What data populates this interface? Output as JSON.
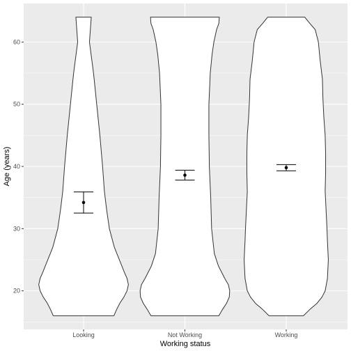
{
  "chart_data": {
    "type": "violin",
    "xlabel": "Working status",
    "ylabel": "Age (years)",
    "categories": [
      "Looking",
      "Not Working",
      "Working"
    ],
    "ylim": [
      13.8,
      66.2
    ],
    "y_ticks": [
      20,
      30,
      40,
      50,
      60
    ],
    "y_tick_labels": [
      "20",
      "30",
      "40",
      "50",
      "60"
    ],
    "grid": true,
    "panel_background": "#ebebeb",
    "grid_color": "#ffffff",
    "violin_fill": "#ffffff",
    "violin_outline": "#333333",
    "violins": [
      {
        "category": "Looking",
        "y_min": 16,
        "y_max": 64,
        "profile": [
          [
            16,
            0.67
          ],
          [
            17,
            0.73
          ],
          [
            18,
            0.8
          ],
          [
            19,
            0.89
          ],
          [
            20,
            0.96
          ],
          [
            21,
            0.99
          ],
          [
            22,
            0.96
          ],
          [
            23,
            0.9
          ],
          [
            25,
            0.79
          ],
          [
            27,
            0.68
          ],
          [
            30,
            0.57
          ],
          [
            33,
            0.51
          ],
          [
            36,
            0.46
          ],
          [
            40,
            0.42
          ],
          [
            45,
            0.36
          ],
          [
            50,
            0.29
          ],
          [
            55,
            0.22
          ],
          [
            60,
            0.13
          ],
          [
            64,
            0.17
          ]
        ]
      },
      {
        "category": "Not Working",
        "y_min": 16,
        "y_max": 64,
        "profile": [
          [
            16,
            0.75
          ],
          [
            17,
            0.83
          ],
          [
            18,
            0.92
          ],
          [
            19,
            0.98
          ],
          [
            20,
            0.99
          ],
          [
            21,
            0.96
          ],
          [
            22,
            0.88
          ],
          [
            24,
            0.74
          ],
          [
            26,
            0.65
          ],
          [
            30,
            0.59
          ],
          [
            35,
            0.57
          ],
          [
            40,
            0.54
          ],
          [
            45,
            0.53
          ],
          [
            50,
            0.53
          ],
          [
            55,
            0.56
          ],
          [
            58,
            0.6
          ],
          [
            60,
            0.64
          ],
          [
            62,
            0.7
          ],
          [
            63,
            0.75
          ],
          [
            64,
            0.76
          ]
        ]
      },
      {
        "category": "Working",
        "y_min": 16,
        "y_max": 64,
        "profile": [
          [
            16,
            0.38
          ],
          [
            17,
            0.52
          ],
          [
            18,
            0.68
          ],
          [
            19,
            0.79
          ],
          [
            20,
            0.86
          ],
          [
            22,
            0.91
          ],
          [
            25,
            0.93
          ],
          [
            28,
            0.91
          ],
          [
            30,
            0.9
          ],
          [
            33,
            0.88
          ],
          [
            36,
            0.86
          ],
          [
            39,
            0.87
          ],
          [
            42,
            0.87
          ],
          [
            45,
            0.86
          ],
          [
            48,
            0.83
          ],
          [
            51,
            0.81
          ],
          [
            54,
            0.8
          ],
          [
            57,
            0.75
          ],
          [
            60,
            0.71
          ],
          [
            62,
            0.64
          ],
          [
            63,
            0.52
          ],
          [
            64,
            0.41
          ]
        ]
      }
    ],
    "means": [
      {
        "category": "Looking",
        "mean": 34.2,
        "ci_low": 32.5,
        "ci_high": 35.9
      },
      {
        "category": "Not Working",
        "mean": 38.6,
        "ci_low": 37.8,
        "ci_high": 39.4
      },
      {
        "category": "Working",
        "mean": 39.8,
        "ci_low": 39.3,
        "ci_high": 40.3
      }
    ]
  }
}
